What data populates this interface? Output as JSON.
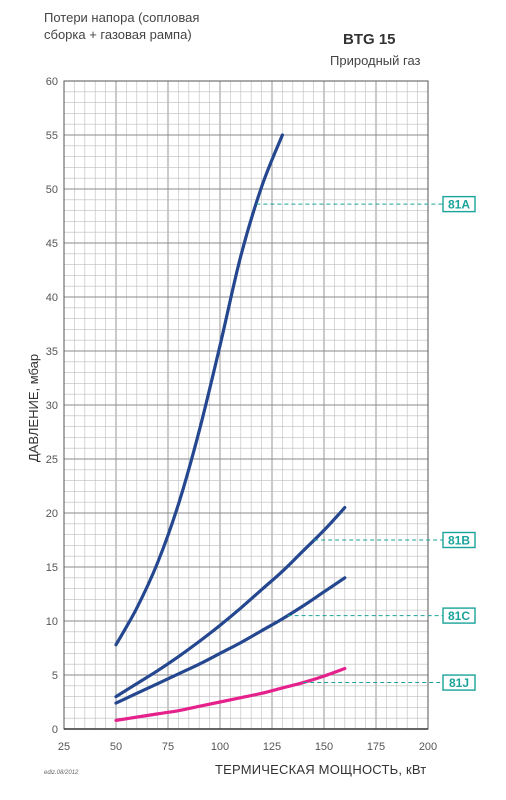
{
  "header": {
    "subtitle_line1": "Потери напора (сопловая",
    "subtitle_line2": "сборка + газовая рампа)",
    "model": "BTG 15",
    "gas_type": "Природный газ"
  },
  "footer": {
    "edition": "ediz.08/2012"
  },
  "chart_data": {
    "type": "line",
    "xlabel": "ТЕРМИЧЕСКАЯ МОЩНОСТЬ, кВт",
    "ylabel": "ДАВЛЕНИЕ, мбар",
    "xlim": [
      25,
      200
    ],
    "ylim": [
      0,
      60
    ],
    "x_ticks": [
      25,
      50,
      75,
      100,
      125,
      150,
      175,
      200
    ],
    "y_ticks": [
      0,
      5,
      10,
      15,
      20,
      25,
      30,
      35,
      40,
      45,
      50,
      55,
      60
    ],
    "grid": true,
    "colors": {
      "blue": "#24478f",
      "magenta": "#e5218c",
      "teal": "#1aa39a"
    },
    "series": [
      {
        "name": "81A",
        "color": "blue",
        "x": [
          50,
          60,
          70,
          80,
          90,
          100,
          110,
          120,
          125,
          130
        ],
        "y": [
          7.8,
          11.2,
          15.4,
          20.8,
          27.6,
          35.5,
          43.8,
          51.5,
          48.5,
          55
        ],
        "label_y": 48.6
      },
      {
        "name": "81B",
        "color": "blue",
        "x": [
          50,
          60,
          70,
          80,
          90,
          100,
          110,
          120,
          130,
          140,
          150,
          160
        ],
        "y": [
          3.0,
          4.2,
          5.4,
          6.7,
          8.1,
          9.6,
          11.2,
          12.9,
          14.6,
          16.5,
          18.4,
          20.5
        ],
        "label_y": 17.5
      },
      {
        "name": "81C",
        "color": "blue",
        "x": [
          50,
          60,
          70,
          80,
          90,
          100,
          110,
          120,
          130,
          140,
          150,
          160
        ],
        "y": [
          2.4,
          3.3,
          4.2,
          5.1,
          6.0,
          7.0,
          8.0,
          9.1,
          10.2,
          11.4,
          12.7,
          14.0
        ],
        "label_y": 10.5
      },
      {
        "name": "81J",
        "color": "magenta",
        "x": [
          50,
          60,
          70,
          80,
          90,
          100,
          110,
          120,
          130,
          140,
          150,
          160
        ],
        "y": [
          0.8,
          1.1,
          1.4,
          1.7,
          2.1,
          2.5,
          2.9,
          3.3,
          3.8,
          4.3,
          4.9,
          5.6
        ],
        "label_y": 4.3
      }
    ]
  }
}
